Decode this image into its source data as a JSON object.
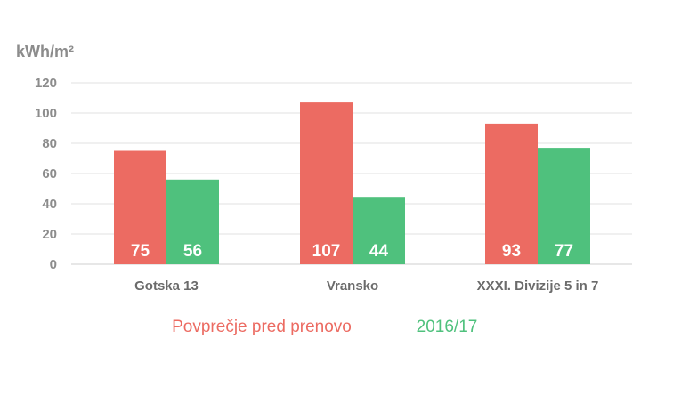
{
  "chart_data": {
    "type": "bar",
    "ylabel": "kWh/m²",
    "categories": [
      "Gotska 13",
      "Vransko",
      "XXXI. Divizije 5 in 7"
    ],
    "series": [
      {
        "name": "Povprečje pred prenovo",
        "color": "#ec6b62",
        "values": [
          75,
          107,
          93
        ]
      },
      {
        "name": "2016/17",
        "color": "#4fc17d",
        "values": [
          56,
          44,
          77
        ]
      }
    ],
    "ylim": [
      0,
      120
    ],
    "yticks": [
      "0",
      "20",
      "40",
      "60",
      "80",
      "100",
      "120"
    ],
    "grid": true,
    "legend_position": "bottom"
  }
}
